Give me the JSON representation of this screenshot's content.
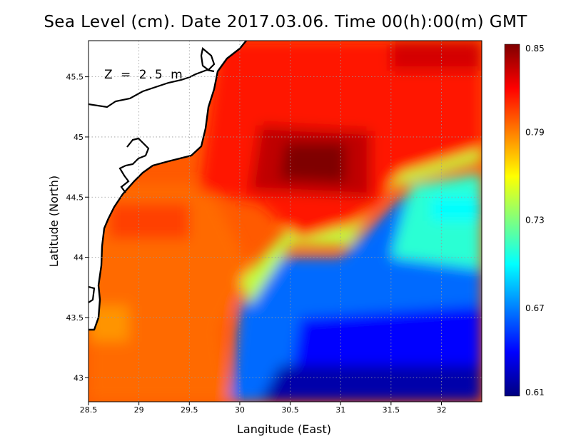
{
  "title": "Sea Level (cm). Date 2017.03.06. Time 00(h):00(m) GMT",
  "depth_label": "Z = 2.5 m",
  "chart_data": {
    "type": "heatmap",
    "variable": "Sea Level",
    "units": "cm",
    "xlabel": "Langitude (East)",
    "ylabel": "Latitude (North)",
    "xlim": [
      28.5,
      32.4
    ],
    "ylim": [
      42.8,
      45.8
    ],
    "x_ticks": [
      "28.5",
      "29",
      "29.5",
      "30",
      "30.5",
      "31",
      "31.5",
      "32"
    ],
    "x_tick_values": [
      28.5,
      29,
      29.5,
      30,
      30.5,
      31,
      31.5,
      32
    ],
    "y_ticks": [
      "43",
      "43.5",
      "44",
      "44.5",
      "45",
      "45.5"
    ],
    "y_tick_values": [
      43,
      43.5,
      44,
      44.5,
      45,
      45.5
    ],
    "grid": true,
    "colorbar": {
      "min": 0.61,
      "max": 0.85,
      "ticks": [
        "0.61",
        "0.67",
        "0.73",
        "0.79",
        "0.85"
      ],
      "tick_values": [
        0.61,
        0.67,
        0.73,
        0.79,
        0.85
      ],
      "colors": [
        "#00007f",
        "#0000ff",
        "#007fff",
        "#00ffff",
        "#7fff7f",
        "#ffff00",
        "#ff7f00",
        "#ff0000",
        "#7f0000"
      ]
    },
    "field_features": [
      {
        "feature": "maximum",
        "lon": 30.8,
        "lat": 44.8,
        "value": 0.85
      },
      {
        "feature": "high",
        "lon": 32.2,
        "lat": 45.6,
        "value": 0.81
      },
      {
        "feature": "high",
        "lon": 29.2,
        "lat": 44.3,
        "value": 0.8
      },
      {
        "feature": "moderate",
        "lon": 28.6,
        "lat": 43.2,
        "value": 0.79
      },
      {
        "feature": "low",
        "lon": 31.9,
        "lat": 44.3,
        "value": 0.68
      },
      {
        "feature": "minimum",
        "lon": 31.5,
        "lat": 42.9,
        "value": 0.62
      },
      {
        "feature": "minimum",
        "lon": 30.3,
        "lat": 43.0,
        "value": 0.62
      }
    ]
  }
}
